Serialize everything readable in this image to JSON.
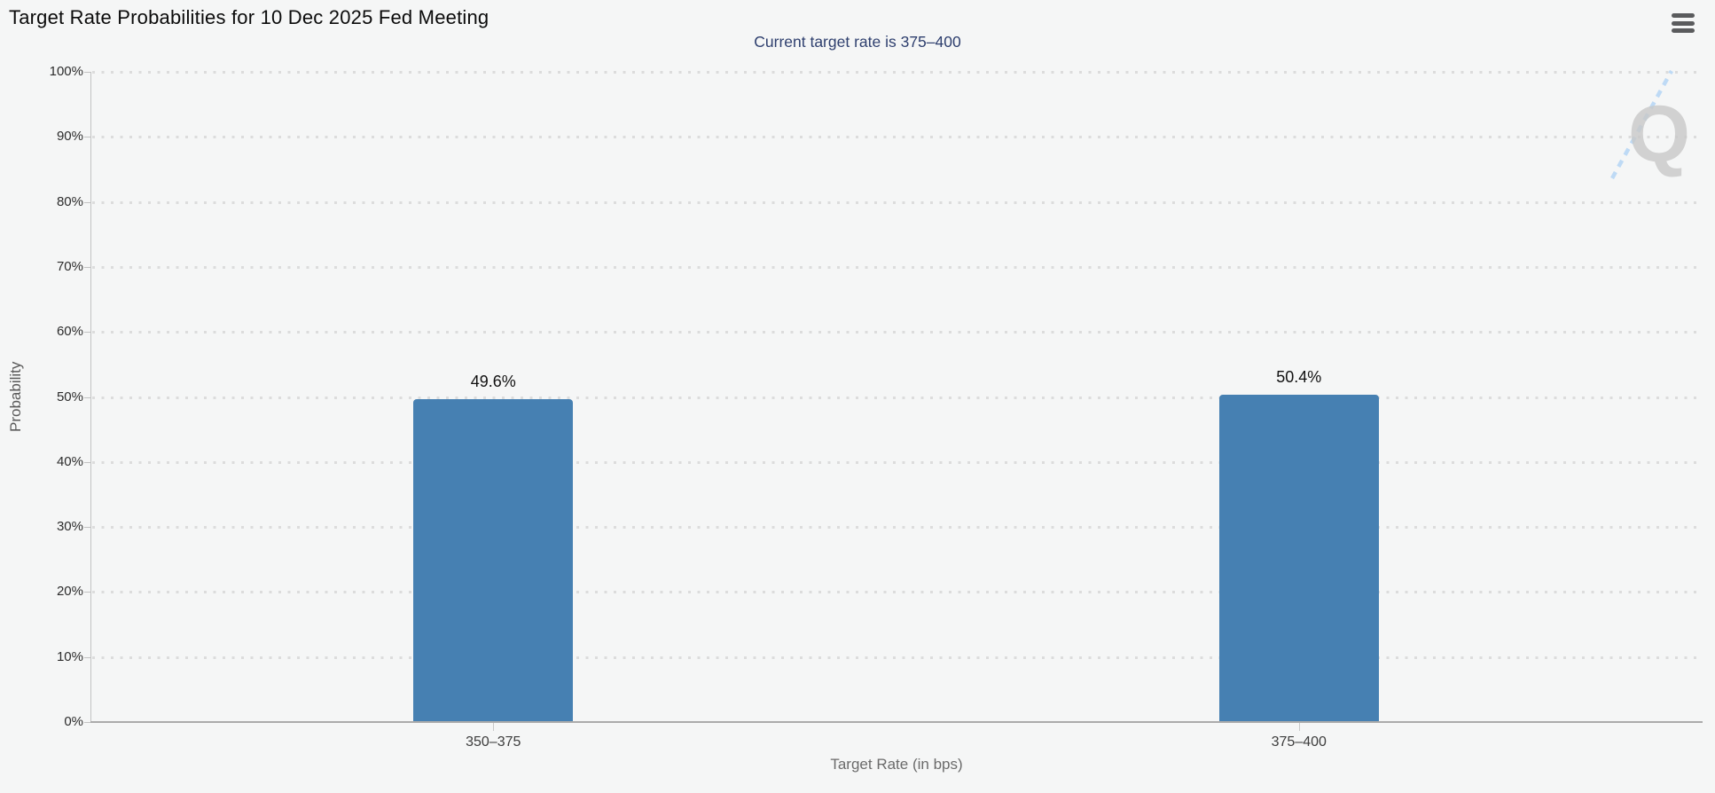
{
  "header": {
    "title": "Target Rate Probabilities for 10 Dec 2025 Fed Meeting",
    "menu_icon": "hamburger-menu-icon"
  },
  "watermark": {
    "letter": "Q"
  },
  "colors": {
    "background": "#f5f6f6",
    "bar": "#4680b2",
    "title_text": "#0b0b0b",
    "subtitle_text": "#2e3f6e",
    "axis_tick_text": "#2b2b2b",
    "muted_text": "#6b6b6b",
    "grid_dot": "#dcdcdc",
    "axis_line": "#c2c2c2",
    "watermark_letter": "#c9c9c9",
    "watermark_dash": "#b9d7f5",
    "menu_icon": "#5a5b5d"
  },
  "chart_data": {
    "type": "bar",
    "title": "Target Rate Probabilities for 10 Dec 2025 Fed Meeting",
    "subtitle": "Current target rate is 375–400",
    "categories": [
      "350–375",
      "375–400"
    ],
    "values": [
      49.6,
      50.4
    ],
    "value_labels": [
      "49.6%",
      "50.4%"
    ],
    "xlabel": "Target Rate (in bps)",
    "ylabel": "Probability",
    "ylim": [
      0,
      100
    ],
    "ytick_step": 10,
    "ytick_labels": [
      "0%",
      "10%",
      "20%",
      "30%",
      "40%",
      "50%",
      "60%",
      "70%",
      "80%",
      "90%",
      "100%"
    ],
    "grid": "horizontal-dotted",
    "legend_position": "none",
    "bar_color": "#4680b2"
  }
}
